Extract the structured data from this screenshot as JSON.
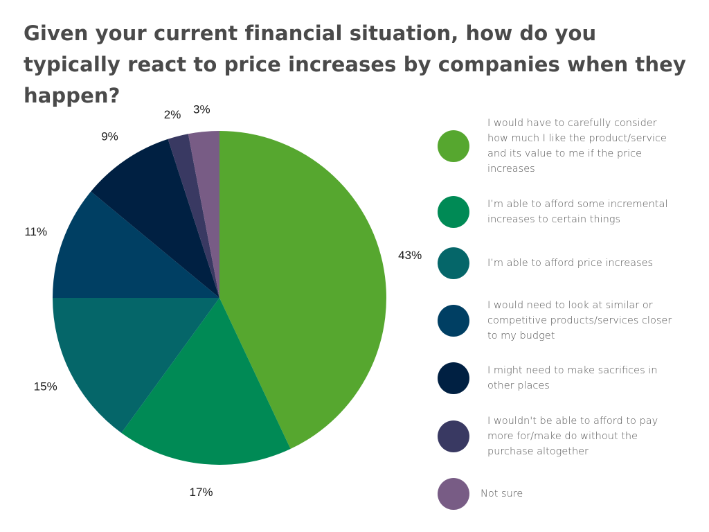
{
  "chart_data": {
    "type": "pie",
    "title": "Given your current financial situation, how do you typically react to price increases by companies when they happen?",
    "slices": [
      {
        "label": "I would have to carefully consider how much I like the product/service and its value to me if the price increases",
        "value": 43,
        "value_label": "43%",
        "color": "#56a72f"
      },
      {
        "label": "I’m able to afford some incremental increases to certain things",
        "value": 17,
        "value_label": "17%",
        "color": "#008a55"
      },
      {
        "label": "I’m able to afford price increases",
        "value": 15,
        "value_label": "15%",
        "color": "#056669"
      },
      {
        "label": "I would need to look at similar or competitive products/services closer to my budget",
        "value": 11,
        "value_label": "11%",
        "color": "#003f63"
      },
      {
        "label": "I might need to make sacrifices in other places",
        "value": 9,
        "value_label": "9%",
        "color": "#002042"
      },
      {
        "label": "I wouldn't be able to afford to pay more for/make do without the purchase altogether",
        "value": 2,
        "value_label": "2%",
        "color": "#393962"
      },
      {
        "label": "Not sure",
        "value": 3,
        "value_label": "3%",
        "color": "#785c85"
      }
    ],
    "legend_placement": "right"
  }
}
